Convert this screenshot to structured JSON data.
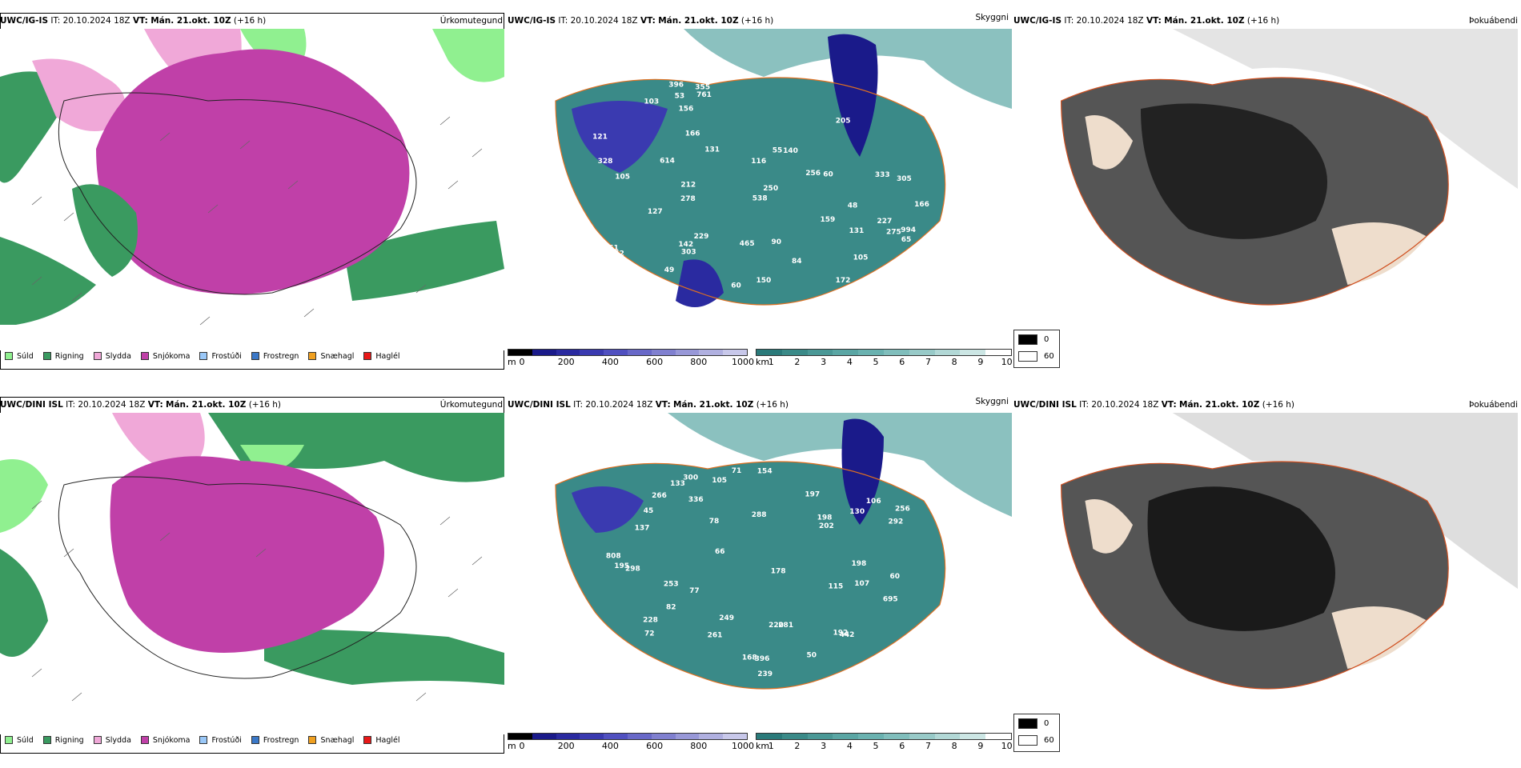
{
  "rows": [
    {
      "model": "UWC/IG-IS",
      "it_label": "IT:",
      "it_value": "20.10.2024 18Z",
      "vt_label": "VT:",
      "vt_value": "Mán. 21.okt. 10Z",
      "lead": "(+16 h)",
      "titles": [
        "Úrkomutegund",
        "Skyggni",
        "Þokuábendi"
      ]
    },
    {
      "model": "UWC/DINI ISL",
      "it_label": "IT:",
      "it_value": "20.10.2024 18Z",
      "vt_label": "VT:",
      "vt_value": "Mán. 21.okt. 10Z",
      "lead": "(+16 h)",
      "titles": [
        "Úrkomutegund",
        "Skyggni",
        "Þokuábendi"
      ]
    }
  ],
  "precip_legend": [
    {
      "label": "Súld",
      "color": "#90f090"
    },
    {
      "label": "Rigning",
      "color": "#3a9a60"
    },
    {
      "label": "Slydda",
      "color": "#f0a8d8"
    },
    {
      "label": "Snjókoma",
      "color": "#c040a8"
    },
    {
      "label": "Frostúði",
      "color": "#9ac8f8"
    },
    {
      "label": "Frostregn",
      "color": "#3a78c8"
    },
    {
      "label": "Snæhagl",
      "color": "#f0a020"
    },
    {
      "label": "Haglél",
      "color": "#e81818"
    }
  ],
  "ceiling_bar": {
    "unit": "m",
    "ticks": [
      "0",
      "200",
      "400",
      "600",
      "800",
      "1000"
    ],
    "colors": [
      "#000000",
      "#1a1a8a",
      "#2a2aa0",
      "#3a3ab0",
      "#5050c0",
      "#6868c8",
      "#8080d0",
      "#9898d8",
      "#b0b0e0",
      "#c8c8ea"
    ]
  },
  "vis_bar": {
    "unit": "km",
    "ticks": [
      "1",
      "2",
      "3",
      "4",
      "5",
      "6",
      "7",
      "8",
      "9",
      "10"
    ],
    "colors": [
      "#2a7a7a",
      "#3a8a88",
      "#4a9896",
      "#5aa6a4",
      "#6ab2b0",
      "#80bebc",
      "#98cac8",
      "#b2d8d6",
      "#cce6e4",
      "#ffffff"
    ]
  },
  "fog_legend": [
    {
      "value": "0",
      "color": "#000000"
    },
    {
      "value": "60",
      "color": "#ffffff"
    }
  ],
  "ceiling_labels": [
    [
      "166",
      "142",
      "90",
      "227",
      "84",
      "156",
      "48",
      "105",
      "131",
      "140",
      "328",
      "116",
      "103",
      "60",
      "61",
      "396",
      "278",
      "352",
      "303",
      "172",
      "250",
      "275",
      "538",
      "205",
      "761",
      "994",
      "229",
      "105",
      "614",
      "212",
      "355",
      "465",
      "305",
      "256",
      "333",
      "150",
      "55",
      "131",
      "49",
      "65",
      "159",
      "127",
      "53",
      "121",
      "60",
      "166"
    ],
    [
      "228",
      "115",
      "133",
      "105",
      "72",
      "60",
      "45",
      "71",
      "66",
      "50",
      "107",
      "195",
      "281",
      "261",
      "292",
      "239",
      "77",
      "198",
      "442",
      "695",
      "288",
      "192",
      "178",
      "256",
      "202",
      "220",
      "300",
      "808",
      "253",
      "396",
      "249",
      "154",
      "298",
      "130",
      "266",
      "336",
      "168",
      "198",
      "78",
      "106",
      "82",
      "197",
      "137"
    ]
  ]
}
